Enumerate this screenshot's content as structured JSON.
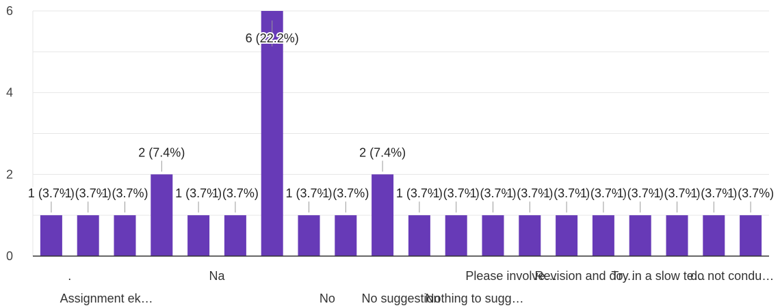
{
  "chart_data": {
    "type": "bar",
    "categories": [
      ".",
      "Assignment ek…",
      "",
      "",
      "Na",
      "",
      "",
      "No",
      "",
      "No suggestion",
      "",
      "Nothing to sugg…",
      "Please involve…",
      "",
      "Revision and do…",
      "",
      "Try in a slow te…",
      "",
      "do not condu…",
      ""
    ],
    "values": [
      1,
      1,
      1,
      2,
      1,
      1,
      6,
      1,
      1,
      2,
      1,
      1,
      1,
      1,
      1,
      1,
      1,
      1,
      1,
      1
    ],
    "data_labels": [
      "1 (3.7%)",
      "1 (3.7%)",
      "1 (3.7%)",
      "2 (7.4%)",
      "1 (3.7%)",
      "1 (3.7%)",
      "6 (22.2%)",
      "1 (3.7%)",
      "1 (3.7%)",
      "2 (7.4%)",
      "1 (3.7%)",
      "1 (3.7%)",
      "1 (3.7%)",
      "1 (3.7%)",
      "1 (3.7%)",
      "1 (3.7%)",
      "1 (3.7%)",
      "1 (3.7%)",
      "1 (3.7%)",
      "1 (3.7%)"
    ],
    "y_ticks": [
      "0",
      "2",
      "4",
      "6"
    ],
    "ylim": [
      0,
      6
    ],
    "grid": true,
    "bar_color": "#673ab7",
    "gridline_color": "#e6e6e6",
    "axis_color": "#333333"
  }
}
